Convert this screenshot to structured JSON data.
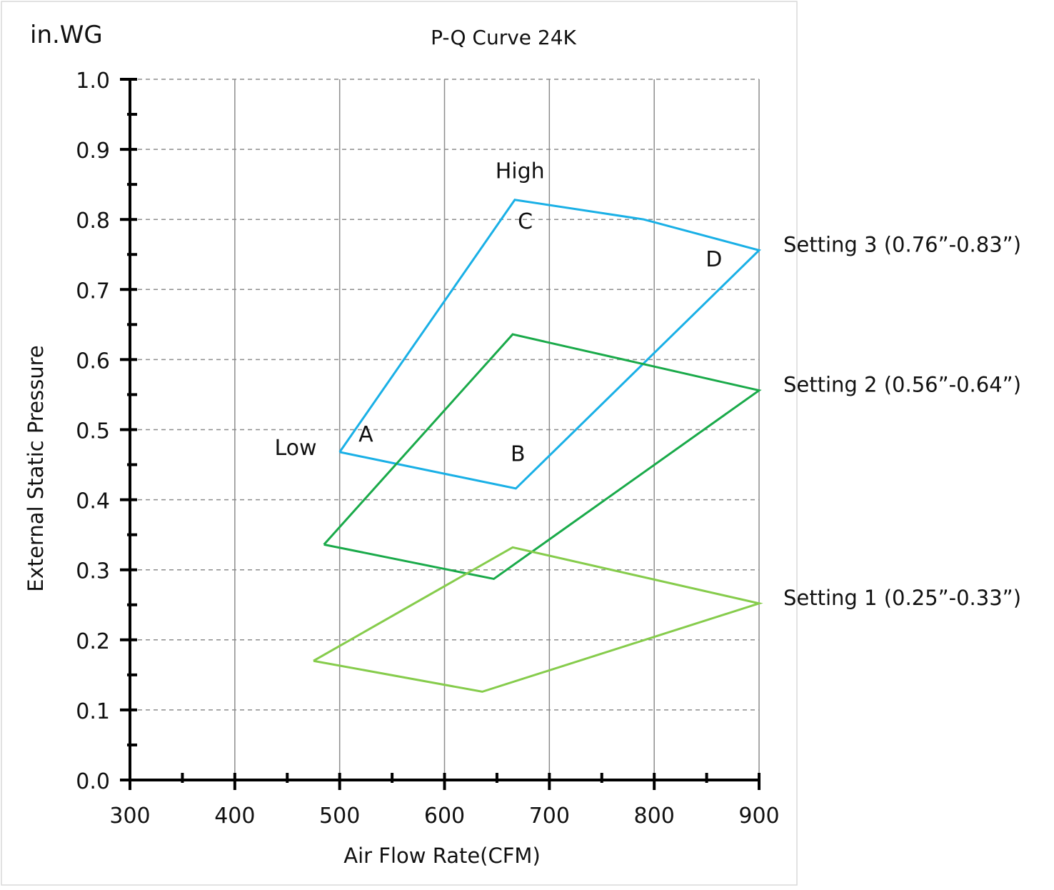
{
  "chart_data": {
    "type": "line",
    "title": "P-Q Curve 24K",
    "xlabel": "Air Flow Rate(CFM)",
    "ylabel": "External Static Pressure",
    "yunit": "in.WG",
    "xlim": [
      300,
      900
    ],
    "ylim": [
      0.0,
      1.0
    ],
    "xticks": [
      "300",
      "400",
      "500",
      "600",
      "700",
      "800",
      "900"
    ],
    "yticks": [
      "0.0",
      "0.1",
      "0.2",
      "0.3",
      "0.4",
      "0.5",
      "0.6",
      "0.7",
      "0.8",
      "0.9",
      "1.0"
    ],
    "xtick_values": [
      300,
      400,
      500,
      600,
      700,
      800,
      900
    ],
    "ytick_values": [
      0.0,
      0.1,
      0.2,
      0.3,
      0.4,
      0.5,
      0.6,
      0.7,
      0.8,
      0.9,
      1.0
    ],
    "grid": {
      "vertical": "solid",
      "horizontal": "dashed"
    },
    "series": [
      {
        "name": "Setting 3 (0.76”-0.83”)",
        "color": "#1ab0e6",
        "points": [
          [
            500,
            0.468
          ],
          [
            668,
            0.416
          ],
          [
            900,
            0.756
          ],
          [
            790,
            0.8
          ],
          [
            667,
            0.828
          ],
          [
            500,
            0.468
          ]
        ]
      },
      {
        "name": "Setting 2 (0.56”-0.64”)",
        "color": "#1aaa4a",
        "points": [
          [
            485,
            0.336
          ],
          [
            647,
            0.287
          ],
          [
            900,
            0.556
          ],
          [
            665,
            0.636
          ],
          [
            485,
            0.336
          ]
        ]
      },
      {
        "name": "Setting 1 (0.25”-0.33”)",
        "color": "#86cc4c",
        "points": [
          [
            475,
            0.17
          ],
          [
            636,
            0.126
          ],
          [
            900,
            0.252
          ],
          [
            665,
            0.332
          ],
          [
            475,
            0.17
          ]
        ]
      }
    ],
    "annotations": [
      {
        "text": "High",
        "x": 672,
        "y": 0.859
      },
      {
        "text": "C",
        "x": 677,
        "y": 0.787
      },
      {
        "text": "D",
        "x": 857,
        "y": 0.733
      },
      {
        "text": "A",
        "x": 525,
        "y": 0.483
      },
      {
        "text": "B",
        "x": 670,
        "y": 0.455
      },
      {
        "text": "Low",
        "x": 458,
        "y": 0.464
      }
    ]
  }
}
